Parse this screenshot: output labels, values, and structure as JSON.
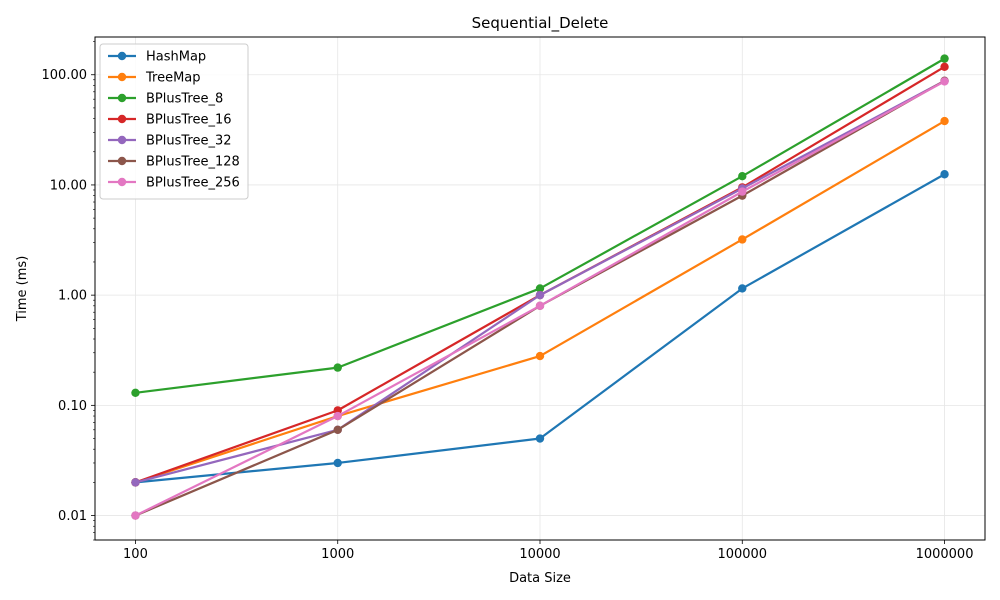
{
  "chart_data": {
    "type": "line",
    "title": "Sequential_Delete",
    "xlabel": "Data Size",
    "ylabel": "Time (ms)",
    "x": [
      100,
      1000,
      10000,
      100000,
      1000000
    ],
    "x_tick_labels": [
      "100",
      "1000",
      "10000",
      "100000",
      "1000000"
    ],
    "x_scale": "log",
    "y_scale": "log",
    "ylim": [
      0.006,
      220
    ],
    "y_ticks": [
      0.01,
      0.1,
      1,
      10,
      100
    ],
    "y_tick_labels": [
      "0.01",
      "0.10",
      "1.00",
      "10.00",
      "100.00"
    ],
    "grid": true,
    "legend_position": "top-left",
    "series": [
      {
        "name": "HashMap",
        "color": "#1f77b4",
        "values": [
          0.02,
          0.03,
          0.05,
          1.15,
          12.5
        ]
      },
      {
        "name": "TreeMap",
        "color": "#ff7f0e",
        "values": [
          0.02,
          0.08,
          0.28,
          3.2,
          38
        ]
      },
      {
        "name": "BPlusTree_8",
        "color": "#2ca02c",
        "values": [
          0.13,
          0.22,
          1.15,
          12,
          140
        ]
      },
      {
        "name": "BPlusTree_16",
        "color": "#d62728",
        "values": [
          0.02,
          0.09,
          1.0,
          9.5,
          118
        ]
      },
      {
        "name": "BPlusTree_32",
        "color": "#9467bd",
        "values": [
          0.02,
          0.06,
          1.0,
          9.3,
          88
        ]
      },
      {
        "name": "BPlusTree_128",
        "color": "#8c564b",
        "values": [
          0.01,
          0.06,
          0.8,
          8.0,
          88
        ]
      },
      {
        "name": "BPlusTree_256",
        "color": "#e377c2",
        "values": [
          0.01,
          0.08,
          0.8,
          8.7,
          87
        ]
      }
    ]
  }
}
